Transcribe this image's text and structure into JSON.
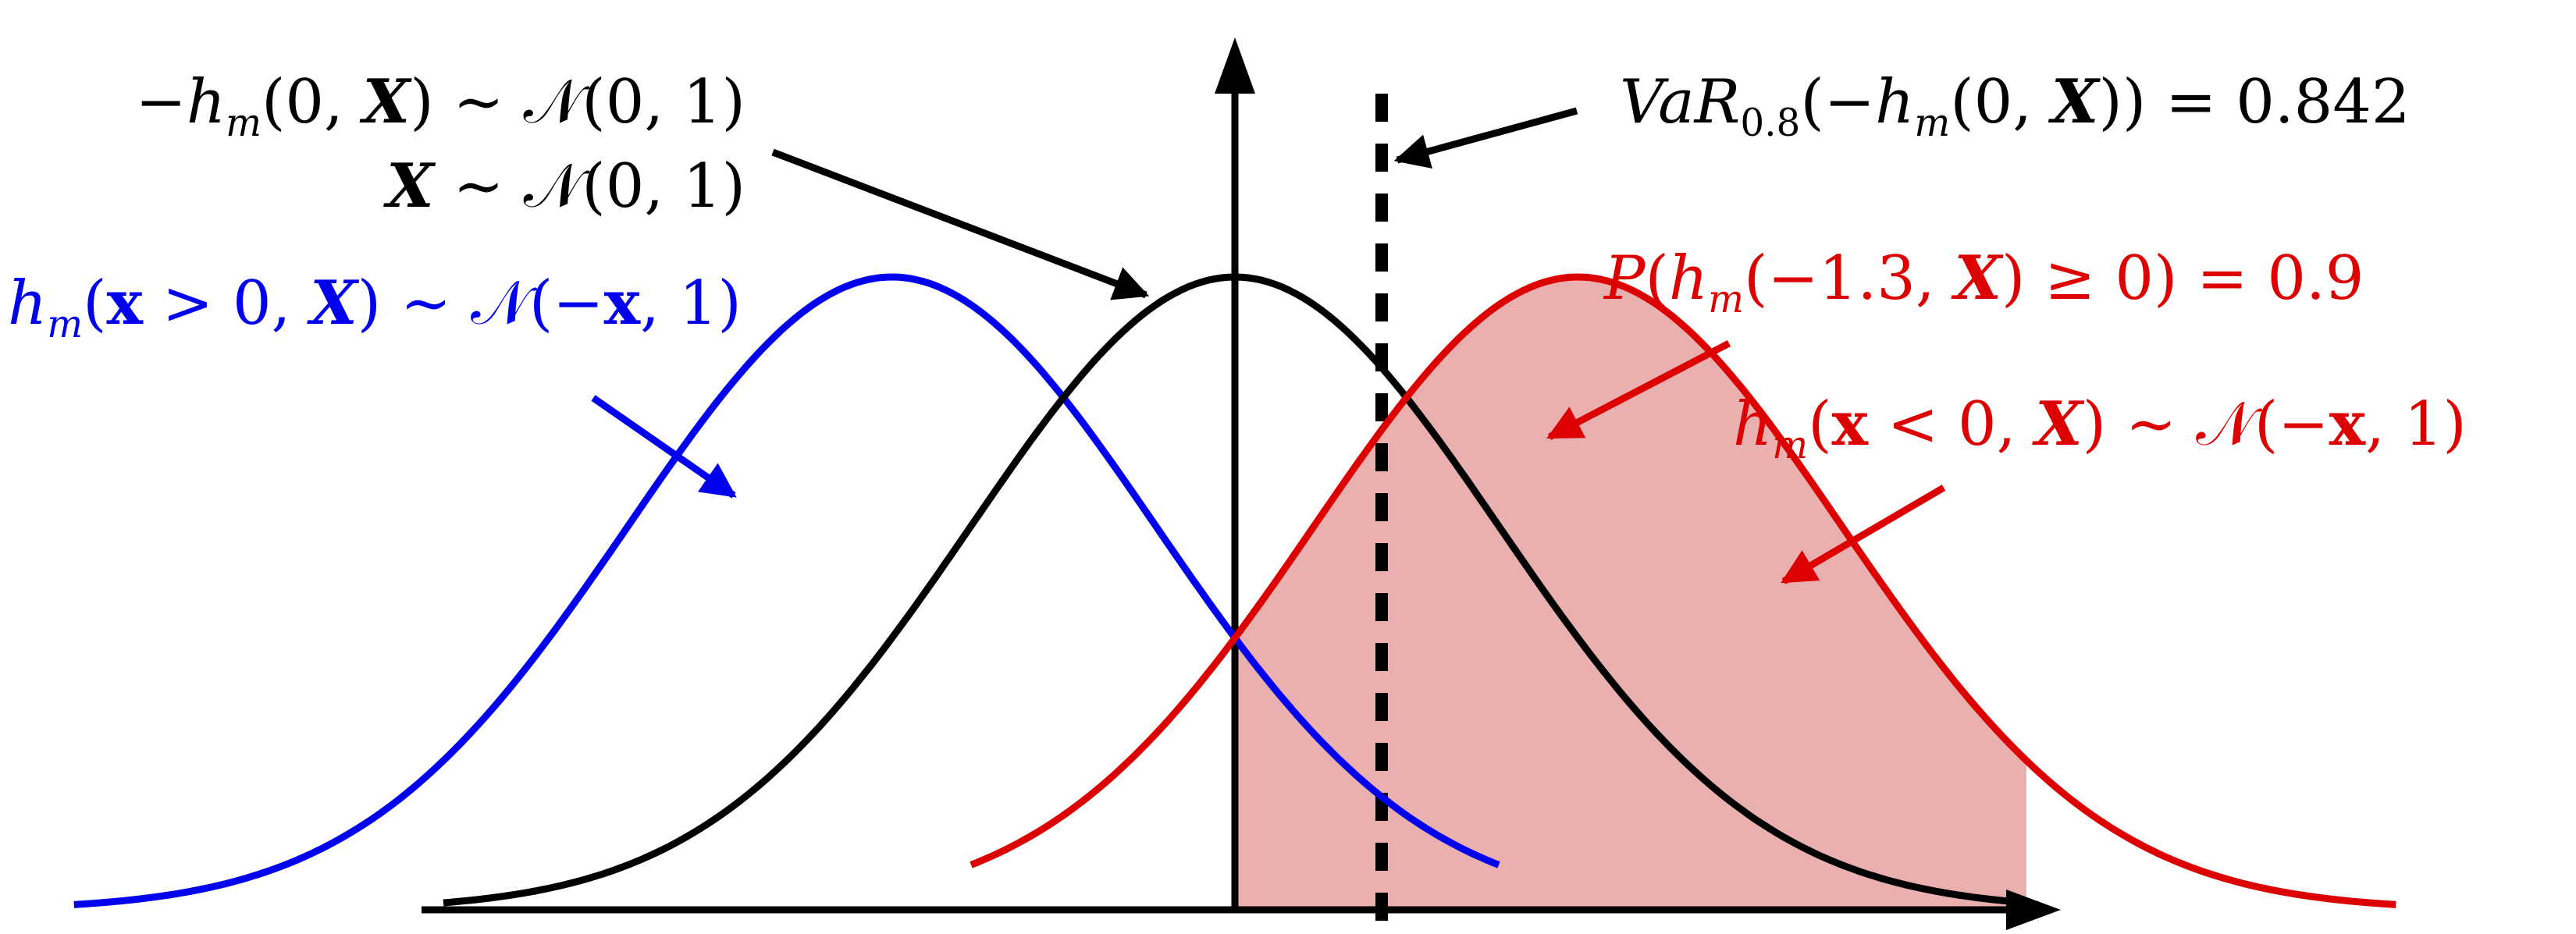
{
  "colors": {
    "blue_curve": "#0000ee",
    "black_curve": "#000000",
    "red_curve": "#dd0000",
    "red_fill": "#eab0b0",
    "background": "#ffffff"
  },
  "labels": {
    "black_line1": {
      "a": "−",
      "b": "h",
      "c": "m",
      "d": "(0, ",
      "e": "X",
      "f": ") ∼ 𝒩(0, 1)"
    },
    "black_line2": {
      "a": "X",
      "b": " ∼ 𝒩(0, 1)"
    },
    "blue": {
      "a": "h",
      "b": "m",
      "c": "(",
      "d": "x",
      "e": " > 0, ",
      "f": "X",
      "g": ") ∼ 𝒩(−",
      "h": "x",
      "i": ", 1)"
    },
    "var": {
      "a": "VaR",
      "b": "0.8",
      "c": "(−",
      "d": "h",
      "e": "m",
      "f": "(0, ",
      "g": "X",
      "h": ")) = 0.842"
    },
    "prob": {
      "a": "P",
      "b": "(",
      "c": "h",
      "d": "m",
      "e": "(−1.3, ",
      "f": "X",
      "g": ") ≥ 0) = 0.9"
    },
    "red": {
      "a": "h",
      "b": "m",
      "c": "(",
      "d": "x",
      "e": " < 0, ",
      "f": "X",
      "g": ") ∼ 𝒩(−",
      "h": "x",
      "i": ", 1)"
    }
  },
  "distributions": {
    "blue": {
      "mean": -1.3,
      "sd": 1
    },
    "black": {
      "mean": 0,
      "sd": 1
    },
    "red": {
      "mean": 1.3,
      "sd": 1
    }
  },
  "var_threshold": 0.842,
  "shaded_from": 0
}
